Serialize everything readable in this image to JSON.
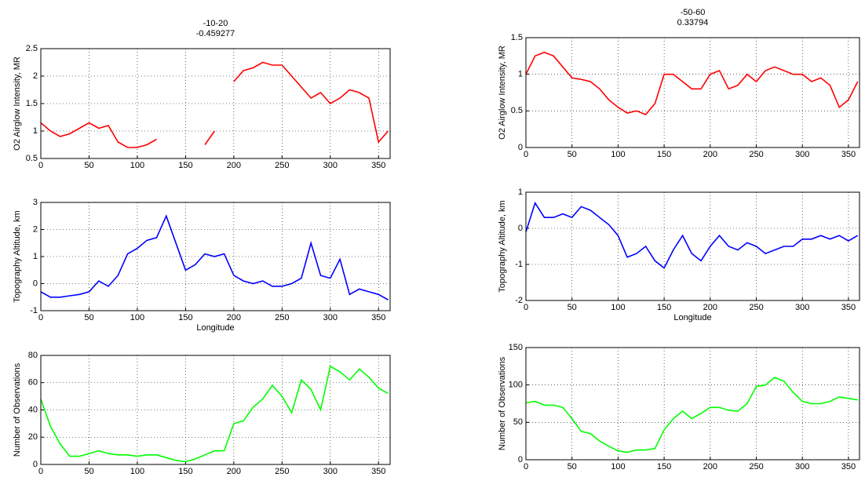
{
  "chart_data": [
    {
      "type": "line",
      "title": "-10-20",
      "subtitle": "-0.459277",
      "ylabel": "O2 Airglow Intensity, MR",
      "x": [
        0,
        10,
        20,
        30,
        40,
        50,
        60,
        70,
        80,
        90,
        100,
        110,
        120,
        130,
        140,
        150,
        160,
        170,
        180,
        190,
        200,
        210,
        220,
        230,
        240,
        250,
        260,
        270,
        280,
        290,
        300,
        310,
        320,
        330,
        340,
        350,
        360
      ],
      "values": [
        1.15,
        1.0,
        0.9,
        0.95,
        1.05,
        1.15,
        1.05,
        1.1,
        0.8,
        0.7,
        0.7,
        0.75,
        0.85,
        null,
        null,
        null,
        null,
        0.75,
        1.0,
        null,
        1.9,
        2.1,
        2.15,
        2.25,
        2.2,
        2.2,
        2.0,
        1.8,
        1.6,
        1.7,
        1.5,
        1.6,
        1.75,
        1.7,
        1.6,
        0.8,
        1.0
      ],
      "color": "#ff0000",
      "xlim": [
        0,
        362
      ],
      "xticks": [
        0,
        50,
        100,
        150,
        200,
        250,
        300,
        350
      ],
      "ylim": [
        0.5,
        2.5
      ],
      "yticks": [
        0.5,
        1,
        1.5,
        2,
        2.5
      ],
      "grid": true
    },
    {
      "type": "line",
      "ylabel": "Topography Altitude, km",
      "xlabel": "Longitude",
      "x": [
        0,
        10,
        20,
        30,
        40,
        50,
        60,
        70,
        80,
        90,
        100,
        110,
        120,
        130,
        140,
        150,
        160,
        170,
        180,
        190,
        200,
        210,
        220,
        230,
        240,
        250,
        260,
        270,
        280,
        290,
        300,
        310,
        320,
        330,
        340,
        350,
        360
      ],
      "values": [
        -0.3,
        -0.5,
        -0.5,
        -0.45,
        -0.4,
        -0.3,
        0.1,
        -0.1,
        0.3,
        1.1,
        1.3,
        1.6,
        1.7,
        2.5,
        1.5,
        0.5,
        0.7,
        1.1,
        1.0,
        1.1,
        0.3,
        0.1,
        0.0,
        0.1,
        -0.1,
        -0.1,
        0.0,
        0.2,
        1.5,
        0.3,
        0.2,
        0.9,
        -0.4,
        -0.2,
        -0.3,
        -0.4,
        -0.6
      ],
      "color": "#0000ff",
      "xlim": [
        0,
        362
      ],
      "xticks": [
        0,
        50,
        100,
        150,
        200,
        250,
        300,
        350
      ],
      "ylim": [
        -1,
        3
      ],
      "yticks": [
        -1,
        0,
        1,
        2,
        3
      ],
      "grid": true
    },
    {
      "type": "line",
      "ylabel": "Number of Observations",
      "x": [
        0,
        10,
        20,
        30,
        40,
        50,
        60,
        70,
        80,
        90,
        100,
        110,
        120,
        130,
        140,
        150,
        160,
        170,
        180,
        190,
        200,
        210,
        220,
        230,
        240,
        250,
        260,
        270,
        280,
        290,
        300,
        310,
        320,
        330,
        340,
        350,
        360
      ],
      "values": [
        48,
        28,
        15,
        6,
        6,
        8,
        10,
        8,
        7,
        7,
        6,
        7,
        7,
        5,
        3,
        2,
        4,
        7,
        10,
        10,
        30,
        32,
        42,
        48,
        58,
        50,
        38,
        62,
        55,
        40,
        72,
        68,
        62,
        70,
        64,
        56,
        52
      ],
      "color": "#00ff00",
      "xlim": [
        0,
        362
      ],
      "xticks": [
        0,
        50,
        100,
        150,
        200,
        250,
        300,
        350
      ],
      "ylim": [
        0,
        80
      ],
      "yticks": [
        0,
        20,
        40,
        60,
        80
      ],
      "grid": true
    },
    {
      "type": "line",
      "title": "-50-60",
      "subtitle": "0.33794",
      "ylabel": "O2 Airglow Intensity, MR",
      "x": [
        0,
        10,
        20,
        30,
        40,
        50,
        60,
        70,
        80,
        90,
        100,
        110,
        120,
        130,
        140,
        150,
        160,
        170,
        180,
        190,
        200,
        210,
        220,
        230,
        240,
        250,
        260,
        270,
        280,
        290,
        300,
        310,
        320,
        330,
        340,
        350,
        360
      ],
      "values": [
        1.0,
        1.25,
        1.3,
        1.25,
        1.1,
        0.95,
        0.93,
        0.9,
        0.8,
        0.65,
        0.55,
        0.47,
        0.5,
        0.45,
        0.6,
        1.0,
        1.0,
        0.9,
        0.8,
        0.8,
        1.0,
        1.05,
        0.8,
        0.85,
        1.0,
        0.9,
        1.05,
        1.1,
        1.05,
        1.0,
        1.0,
        0.9,
        0.95,
        0.85,
        0.55,
        0.65,
        0.9
      ],
      "color": "#ff0000",
      "xlim": [
        0,
        362
      ],
      "xticks": [
        0,
        50,
        100,
        150,
        200,
        250,
        300,
        350
      ],
      "ylim": [
        0,
        1.5
      ],
      "yticks": [
        0,
        0.5,
        1,
        1.5
      ],
      "grid": true
    },
    {
      "type": "line",
      "ylabel": "Topography Altitude, km",
      "xlabel": "Longitude",
      "x": [
        0,
        10,
        20,
        30,
        40,
        50,
        60,
        70,
        80,
        90,
        100,
        110,
        120,
        130,
        140,
        150,
        160,
        170,
        180,
        190,
        200,
        210,
        220,
        230,
        240,
        250,
        260,
        270,
        280,
        290,
        300,
        310,
        320,
        330,
        340,
        350,
        360
      ],
      "values": [
        -0.1,
        0.7,
        0.3,
        0.3,
        0.4,
        0.3,
        0.6,
        0.5,
        0.3,
        0.1,
        -0.2,
        -0.8,
        -0.7,
        -0.5,
        -0.9,
        -1.1,
        -0.6,
        -0.2,
        -0.7,
        -0.9,
        -0.5,
        -0.2,
        -0.5,
        -0.6,
        -0.4,
        -0.5,
        -0.7,
        -0.6,
        -0.5,
        -0.5,
        -0.3,
        -0.3,
        -0.2,
        -0.3,
        -0.2,
        -0.35,
        -0.2
      ],
      "color": "#0000ff",
      "xlim": [
        0,
        362
      ],
      "xticks": [
        0,
        50,
        100,
        150,
        200,
        250,
        300,
        350
      ],
      "ylim": [
        -2,
        1
      ],
      "yticks": [
        -2,
        -1,
        0,
        1
      ],
      "grid": true
    },
    {
      "type": "line",
      "ylabel": "Number of Observations",
      "x": [
        0,
        10,
        20,
        30,
        40,
        50,
        60,
        70,
        80,
        90,
        100,
        110,
        120,
        130,
        140,
        150,
        160,
        170,
        180,
        190,
        200,
        210,
        220,
        230,
        240,
        250,
        260,
        270,
        280,
        290,
        300,
        310,
        320,
        330,
        340,
        350,
        360
      ],
      "values": [
        76,
        78,
        73,
        73,
        70,
        55,
        38,
        35,
        25,
        18,
        12,
        10,
        13,
        13,
        15,
        40,
        55,
        65,
        55,
        62,
        70,
        70,
        66,
        65,
        75,
        98,
        100,
        110,
        105,
        90,
        78,
        75,
        75,
        78,
        84,
        82,
        80
      ],
      "color": "#00ff00",
      "xlim": [
        0,
        362
      ],
      "xticks": [
        0,
        50,
        100,
        150,
        200,
        250,
        300,
        350
      ],
      "ylim": [
        0,
        150
      ],
      "yticks": [
        0,
        50,
        100,
        150
      ],
      "grid": true
    }
  ]
}
